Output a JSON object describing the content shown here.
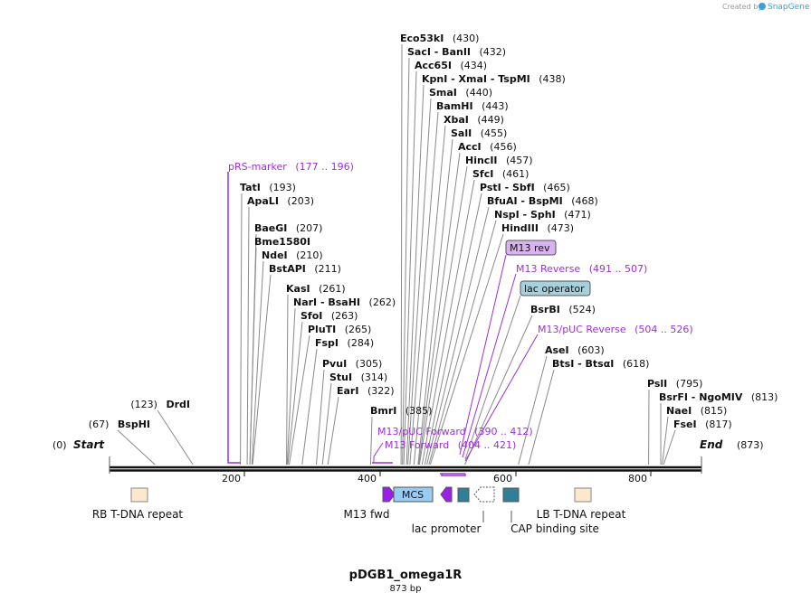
{
  "header": {
    "created_by": "Created by",
    "brand": "SnapGene"
  },
  "map": {
    "name": "pDGB1_omega1R",
    "length": "873 bp",
    "start_label": "Start",
    "start_pos": "(0)",
    "end_label": "End",
    "end_pos": "(873)",
    "ticks": [
      {
        "bp": 200,
        "label": "200"
      },
      {
        "bp": 400,
        "label": "400"
      },
      {
        "bp": 600,
        "label": "600"
      },
      {
        "bp": 800,
        "label": "800"
      }
    ]
  },
  "sites": [
    {
      "id": "eco53ki",
      "name": "Eco53kI",
      "pos": "(430)",
      "bp": 430
    },
    {
      "id": "saci",
      "name": "SacI  - BanII",
      "pos": "(432)",
      "bp": 432
    },
    {
      "id": "acc65i",
      "name": "Acc65I",
      "pos": "(434)",
      "bp": 434
    },
    {
      "id": "kpni",
      "name": "KpnI  - XmaI  - TspMI",
      "pos": "(438)",
      "bp": 438
    },
    {
      "id": "smai",
      "name": "SmaI",
      "pos": "(440)",
      "bp": 440
    },
    {
      "id": "bamhi",
      "name": "BamHI",
      "pos": "(443)",
      "bp": 443
    },
    {
      "id": "xbai",
      "name": "XbaI",
      "pos": "(449)",
      "bp": 449
    },
    {
      "id": "sali",
      "name": "SalI",
      "pos": "(455)",
      "bp": 455
    },
    {
      "id": "acci",
      "name": "AccI",
      "pos": "(456)",
      "bp": 456
    },
    {
      "id": "hincii",
      "name": "HincII",
      "pos": "(457)",
      "bp": 457
    },
    {
      "id": "sfci",
      "name": "SfcI",
      "pos": "(461)",
      "bp": 461
    },
    {
      "id": "psti",
      "name": "PstI  - SbfI",
      "pos": "(465)",
      "bp": 465
    },
    {
      "id": "bfuai",
      "name": "BfuAI  - BspMI",
      "pos": "(468)",
      "bp": 468
    },
    {
      "id": "nspi",
      "name": "NspI  - SphI",
      "pos": "(471)",
      "bp": 471
    },
    {
      "id": "hindiii",
      "name": "HindIII",
      "pos": "(473)",
      "bp": 473
    },
    {
      "id": "tati",
      "name": "TatI",
      "pos": "(193)",
      "bp": 193
    },
    {
      "id": "apali",
      "name": "ApaLI",
      "pos": "(203)",
      "bp": 203
    },
    {
      "id": "baegi",
      "name": "BaeGI",
      "pos": "(207)",
      "bp": 207
    },
    {
      "id": "bme1580i",
      "name": "Bme1580I",
      "pos": "",
      "bp": 207
    },
    {
      "id": "ndei",
      "name": "NdeI",
      "pos": "(210)",
      "bp": 210
    },
    {
      "id": "bstapi",
      "name": "BstAPI",
      "pos": "(211)",
      "bp": 211
    },
    {
      "id": "kasi",
      "name": "KasI",
      "pos": "(261)",
      "bp": 261
    },
    {
      "id": "nari",
      "name": "NarI  - BsaHI",
      "pos": "(262)",
      "bp": 262
    },
    {
      "id": "sfoi",
      "name": "SfoI",
      "pos": "(263)",
      "bp": 263
    },
    {
      "id": "pluti",
      "name": "PluTI",
      "pos": "(265)",
      "bp": 265
    },
    {
      "id": "fspi",
      "name": "FspI",
      "pos": "(284)",
      "bp": 284
    },
    {
      "id": "pvui",
      "name": "PvuI",
      "pos": "(305)",
      "bp": 305
    },
    {
      "id": "stui",
      "name": "StuI",
      "pos": "(314)",
      "bp": 314
    },
    {
      "id": "eari",
      "name": "EarI",
      "pos": "(322)",
      "bp": 322
    },
    {
      "id": "bmri",
      "name": "BmrI",
      "pos": "(385)",
      "bp": 385
    },
    {
      "id": "drdi",
      "name": "DrdI",
      "pos": "(123)",
      "bp": 123
    },
    {
      "id": "bsphi",
      "name": "BspHI",
      "pos": "(67)",
      "bp": 67
    },
    {
      "id": "bsrbi",
      "name": "BsrBI",
      "pos": "(524)",
      "bp": 524
    },
    {
      "id": "asei",
      "name": "AseI",
      "pos": "(603)",
      "bp": 603
    },
    {
      "id": "btsi",
      "name": "BtsI  - BtsαI",
      "pos": "(618)",
      "bp": 618
    },
    {
      "id": "psli",
      "name": "PslI",
      "pos": "(795)",
      "bp": 795
    },
    {
      "id": "bsrfi",
      "name": "BsrFI  - NgoMIV",
      "pos": "(813)",
      "bp": 813
    },
    {
      "id": "naei",
      "name": "NaeI",
      "pos": "(815)",
      "bp": 815
    },
    {
      "id": "fsei",
      "name": "FseI",
      "pos": "(817)",
      "bp": 817
    }
  ],
  "primers": [
    {
      "id": "prs-marker",
      "name": "pRS-marker",
      "range": "(177 .. 196)",
      "start": 177,
      "end": 196
    },
    {
      "id": "m13-reverse",
      "name": "M13 Reverse",
      "range": "(491 .. 507)",
      "start": 491,
      "end": 507
    },
    {
      "id": "m13-puc-reverse",
      "name": "M13/pUC Reverse",
      "range": "(504 .. 526)",
      "start": 504,
      "end": 526
    },
    {
      "id": "m13-puc-forward",
      "name": "M13/pUC Forward",
      "range": "(390 .. 412)",
      "start": 390,
      "end": 412
    },
    {
      "id": "m13-forward",
      "name": "M13 Forward",
      "range": "(404 .. 421)",
      "start": 404,
      "end": 421
    }
  ],
  "boxed_features": [
    {
      "id": "m13-rev",
      "name": "M13 rev"
    },
    {
      "id": "lac-operator",
      "name": "lac operator"
    }
  ],
  "features": [
    {
      "id": "rb-tdna",
      "name": "RB T-DNA repeat",
      "color": "#fce8cc"
    },
    {
      "id": "m13-fwd",
      "name": "M13 fwd",
      "color": "#9b1fe8"
    },
    {
      "id": "mcs",
      "name": "MCS",
      "color": "#99ccf5"
    },
    {
      "id": "lac-promoter",
      "name": "lac promoter",
      "color": "#ffffff"
    },
    {
      "id": "cap-site",
      "name": "CAP binding site",
      "color": "#2f7f99"
    },
    {
      "id": "lb-tdna",
      "name": "LB T-DNA repeat",
      "color": "#fce8cc"
    }
  ],
  "colors": {
    "primer": "#9b30d9",
    "m13_rev_box": "#d8b3f0",
    "lac_operator_box": "#a7cfdc",
    "backbone": "#111111",
    "leader": "#8a8a8a"
  }
}
